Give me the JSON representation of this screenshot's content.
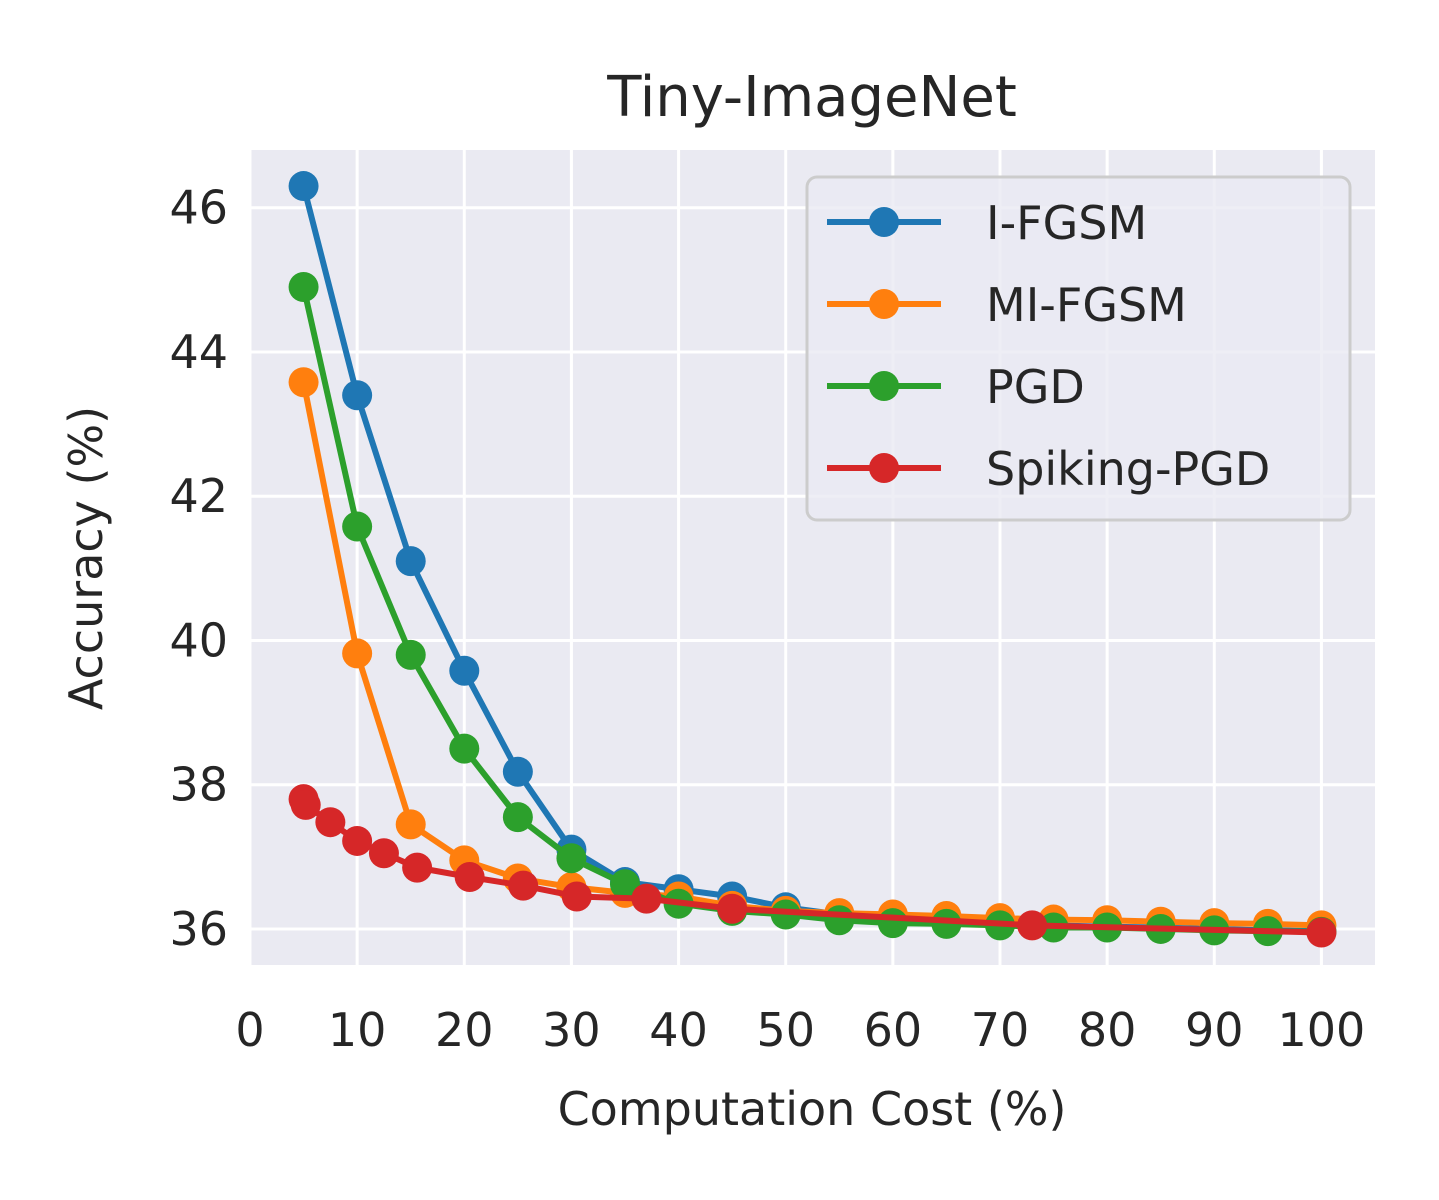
{
  "chart_data": {
    "type": "line",
    "title": "Tiny-ImageNet",
    "xlabel": "Computation Cost (%)",
    "ylabel": "Accuracy (%)",
    "xlim": [
      0,
      105
    ],
    "ylim": [
      35.5,
      46.8
    ],
    "xticks": [
      0,
      10,
      20,
      30,
      40,
      50,
      60,
      70,
      80,
      90,
      100
    ],
    "yticks": [
      36,
      38,
      40,
      42,
      44,
      46
    ],
    "grid": true,
    "legend_position": "top-right",
    "series": [
      {
        "name": "I-FGSM",
        "color": "#1f77b4",
        "x": [
          5,
          10,
          15,
          20,
          25,
          30,
          35,
          40,
          45,
          50,
          55,
          60,
          65,
          70,
          75,
          80,
          85,
          90,
          95,
          100
        ],
        "y": [
          46.3,
          43.4,
          41.1,
          39.58,
          38.18,
          37.1,
          36.65,
          36.55,
          36.45,
          36.3,
          36.2,
          36.15,
          36.1,
          36.07,
          36.05,
          36.03,
          36.02,
          36.0,
          35.98,
          35.97
        ]
      },
      {
        "name": "MI-FGSM",
        "color": "#ff7f0e",
        "x": [
          5,
          10,
          15,
          20,
          25,
          30,
          35,
          40,
          45,
          50,
          55,
          60,
          65,
          70,
          75,
          80,
          85,
          90,
          95,
          100
        ],
        "y": [
          43.58,
          39.82,
          37.45,
          36.95,
          36.7,
          36.58,
          36.5,
          36.45,
          36.32,
          36.25,
          36.22,
          36.2,
          36.18,
          36.15,
          36.13,
          36.12,
          36.1,
          36.08,
          36.07,
          36.05
        ]
      },
      {
        "name": "PGD",
        "color": "#2ca02c",
        "x": [
          5,
          10,
          15,
          20,
          25,
          30,
          35,
          40,
          45,
          50,
          55,
          60,
          65,
          70,
          75,
          80,
          85,
          90,
          95,
          100
        ],
        "y": [
          44.9,
          41.58,
          39.8,
          38.5,
          37.55,
          36.98,
          36.62,
          36.35,
          36.25,
          36.2,
          36.12,
          36.08,
          36.07,
          36.05,
          36.02,
          36.02,
          36.0,
          35.98,
          35.97,
          35.96
        ]
      },
      {
        "name": "Spiking-PGD",
        "color": "#d62728",
        "x": [
          5,
          5.2,
          7.5,
          10,
          12.5,
          15.6,
          20.5,
          25.5,
          30.5,
          37,
          45,
          73,
          100
        ],
        "y": [
          37.8,
          37.72,
          37.48,
          37.22,
          37.05,
          36.85,
          36.72,
          36.6,
          36.45,
          36.42,
          36.28,
          36.05,
          35.95
        ]
      }
    ]
  }
}
